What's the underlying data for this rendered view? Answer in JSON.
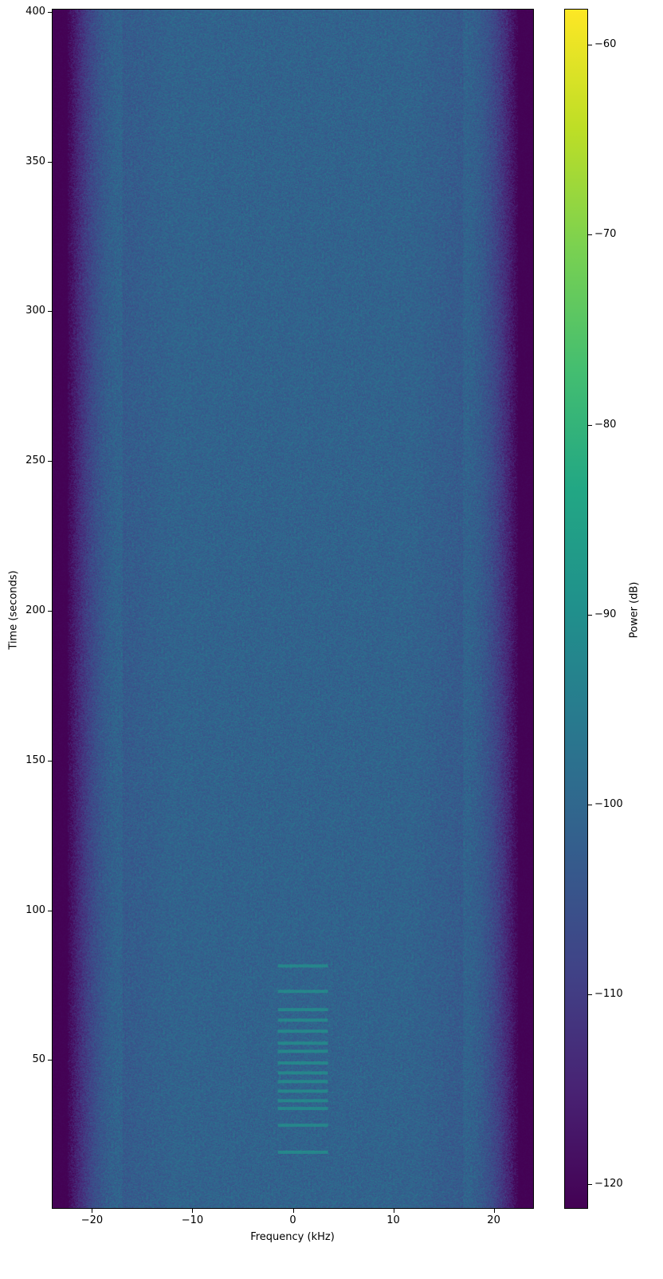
{
  "chart_data": {
    "type": "heatmap",
    "title": "",
    "xlabel": "Frequency (kHz)",
    "ylabel": "Time (seconds)",
    "colorbar_label": "Power (dB)",
    "colormap": "viridis",
    "xlim": [
      -24,
      24
    ],
    "ylim": [
      0.3,
      401
    ],
    "clim": [
      -121.3,
      -58.1
    ],
    "xticks": [
      -20,
      -10,
      0,
      10,
      20
    ],
    "xtick_labels": [
      "−20",
      "−10",
      "0",
      "10",
      "20"
    ],
    "yticks": [
      50,
      100,
      150,
      200,
      250,
      300,
      350,
      400
    ],
    "ytick_labels": [
      "50",
      "100",
      "150",
      "200",
      "250",
      "300",
      "350",
      "400"
    ],
    "cticks": [
      -60,
      -70,
      -80,
      -90,
      -100,
      -110,
      -120
    ],
    "ctick_labels": [
      "−60",
      "−70",
      "−80",
      "−90",
      "−100",
      "−110",
      "−120"
    ],
    "noise_floor_db": -101,
    "band_edge_rolloff_khz": [
      -20,
      20
    ],
    "out_of_band_db": -121,
    "bursts": {
      "freq_range_khz": [
        -1.5,
        3.5
      ],
      "power_db": -88,
      "times_s": [
        81.4,
        72.9,
        66.8,
        63.3,
        59.6,
        55.6,
        52.9,
        49.0,
        45.7,
        42.8,
        39.6,
        36.4,
        33.8,
        28.2,
        19.2
      ]
    }
  }
}
